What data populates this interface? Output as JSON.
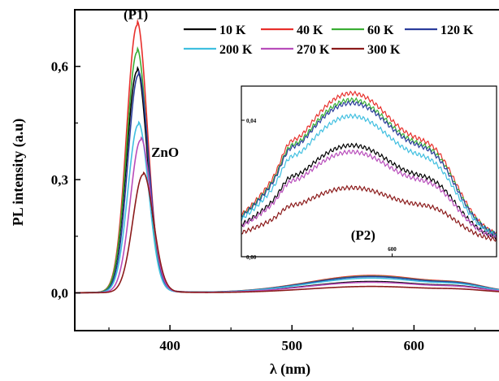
{
  "chart_data": [
    {
      "type": "line",
      "xlabel": "λ (nm)",
      "ylabel": "PL intensity (a.u)",
      "xlim": [
        322,
        675
      ],
      "ylim": [
        -0.1,
        0.75
      ],
      "xticks": [
        400,
        500,
        600
      ],
      "xtick_labels": [
        "400",
        "500",
        "600"
      ],
      "yticks": [
        0.0,
        0.3,
        0.6
      ],
      "ytick_labels": [
        "0,0",
        "0,3",
        "0,6"
      ],
      "grid": false,
      "legend_position": "top-right",
      "annotations": [
        {
          "text": "(P1)",
          "x": 372,
          "y": 0.725
        },
        {
          "text": "ZnO",
          "x": 396,
          "y": 0.36
        }
      ],
      "series": [
        {
          "name": "10 K",
          "color": "#000000",
          "peak_x": 373,
          "peak_y": 0.58,
          "width": 8.5,
          "p2_y": 0.03
        },
        {
          "name": "40 K",
          "color": "#e8302c",
          "peak_x": 373,
          "peak_y": 0.7,
          "width": 8.5,
          "p2_y": 0.046
        },
        {
          "name": "60 K",
          "color": "#3bae35",
          "peak_x": 373,
          "peak_y": 0.63,
          "width": 8.5,
          "p2_y": 0.044
        },
        {
          "name": "120 K",
          "color": "#2b3d9c",
          "peak_x": 374,
          "peak_y": 0.57,
          "width": 8.5,
          "p2_y": 0.043
        },
        {
          "name": "200 K",
          "color": "#40bfe0",
          "peak_x": 374,
          "peak_y": 0.44,
          "width": 8.5,
          "p2_y": 0.039
        },
        {
          "name": "270 K",
          "color": "#b84dbb",
          "peak_x": 376,
          "peak_y": 0.4,
          "width": 8.5,
          "p2_y": 0.028
        },
        {
          "name": "300 K",
          "color": "#8b1a1a",
          "peak_x": 378,
          "peak_y": 0.31,
          "width": 8.5,
          "p2_y": 0.017
        }
      ]
    },
    {
      "type": "line",
      "inset": true,
      "xlim": [
        470,
        690
      ],
      "ylim": [
        0.0,
        0.05
      ],
      "xticks": [
        600
      ],
      "xtick_labels": [
        "600"
      ],
      "yticks": [
        0.0,
        0.04
      ],
      "ytick_labels": [
        "0,00",
        "0,04"
      ],
      "annotations": [
        {
          "text": "(P2)",
          "x": 575,
          "y": 0.005
        }
      ]
    }
  ]
}
